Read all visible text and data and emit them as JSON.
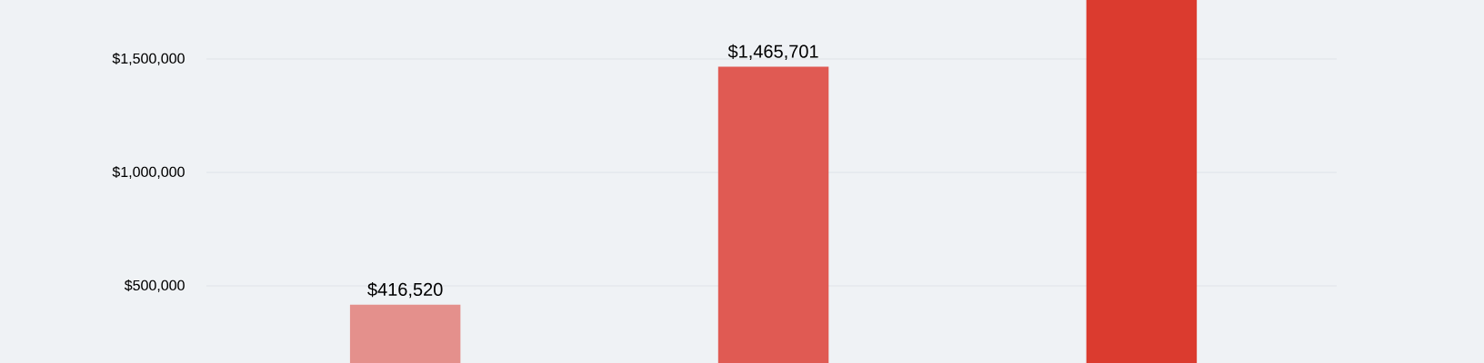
{
  "chart_data": {
    "type": "bar",
    "categories": [
      null,
      null,
      null
    ],
    "values": [
      416520,
      1465701,
      1760000
    ],
    "colors": [
      "#e4908c",
      "#e05a53",
      "#db3b2f"
    ],
    "value_labels": [
      "$416,520",
      "$1,465,701",
      null
    ],
    "ylim": [
      160000,
      1760000
    ],
    "yticks": [
      {
        "value": 500000,
        "label": "$500,000"
      },
      {
        "value": 1000000,
        "label": "$1,000,000"
      },
      {
        "value": 1500000,
        "label": "$1,500,000"
      }
    ],
    "grid": "y",
    "tick_labels": "y"
  }
}
